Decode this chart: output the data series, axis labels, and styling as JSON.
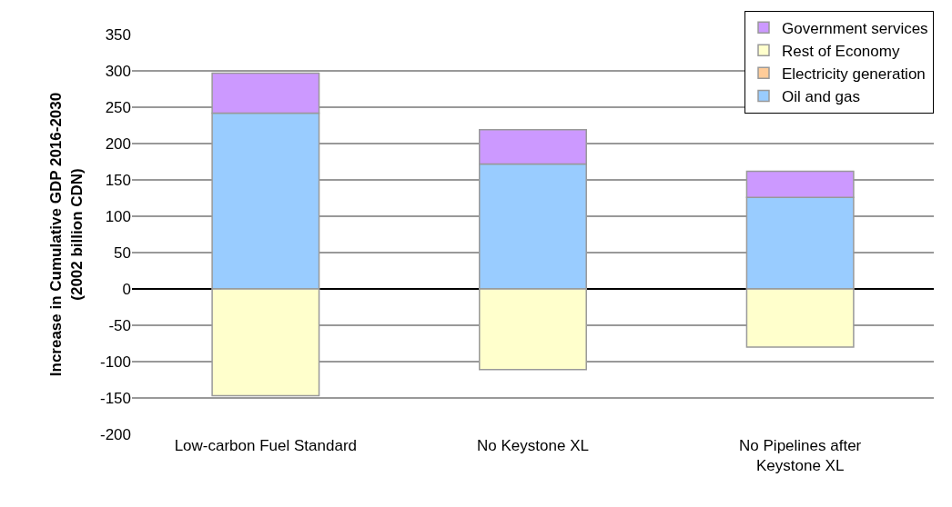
{
  "chart_data": {
    "type": "bar",
    "stacked": true,
    "ylabel": "Increase in Cumulative GDP 2016-2030\n(2002 billion CDN)",
    "categories": [
      "Low-carbon Fuel Standard",
      "No Keystone XL",
      "No Pipelines after\nKeystone XL"
    ],
    "series": [
      {
        "name": "Oil and gas",
        "color": "#99ccff",
        "values": [
          242,
          172,
          126
        ]
      },
      {
        "name": "Electricity generation",
        "color": "#ffcc99",
        "values": [
          null,
          null,
          null
        ]
      },
      {
        "name": "Rest of Economy",
        "color": "#ffffcc",
        "values": [
          -147,
          -111,
          -80
        ]
      },
      {
        "name": "Government services",
        "color": "#cc99ff",
        "values": [
          55,
          47,
          36
        ]
      }
    ],
    "ylim": [
      -200,
      350
    ],
    "yticks": [
      -200,
      -150,
      -100,
      -50,
      0,
      50,
      100,
      150,
      200,
      250,
      300,
      350
    ],
    "grid": "y",
    "legend": "top right"
  }
}
